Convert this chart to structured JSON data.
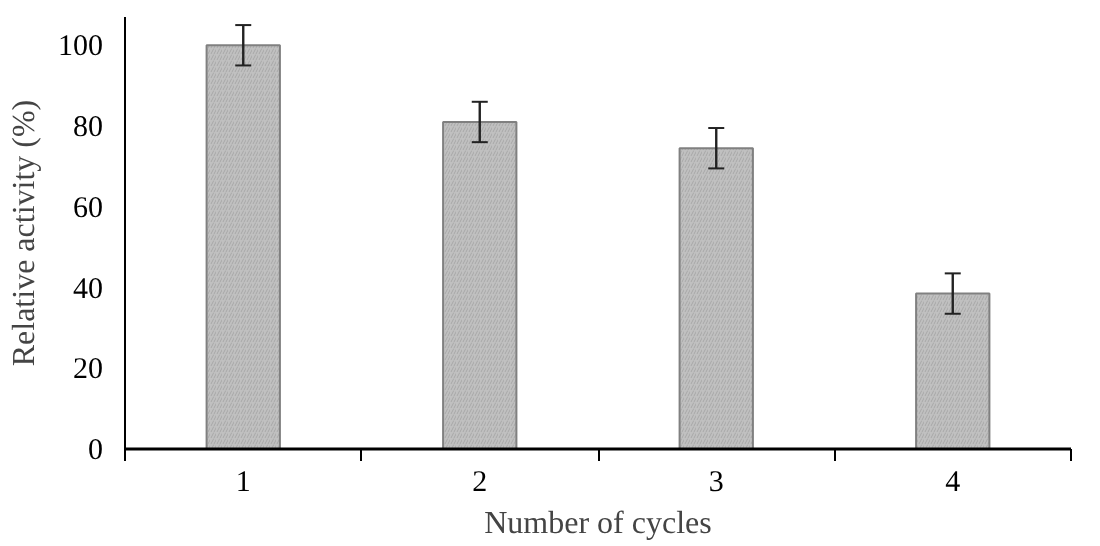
{
  "chart_data": {
    "type": "bar",
    "xlabel": "Number of cycles",
    "ylabel": "Relative activity (%)",
    "categories": [
      "1",
      "2",
      "3",
      "4"
    ],
    "values": [
      100,
      81,
      74.5,
      38.5
    ],
    "errors": [
      5,
      5,
      5,
      5
    ],
    "color": "#c0c0c0",
    "ylim": [
      0,
      100
    ],
    "yticks": [
      0,
      20,
      40,
      60,
      80,
      100
    ],
    "grid": false
  }
}
